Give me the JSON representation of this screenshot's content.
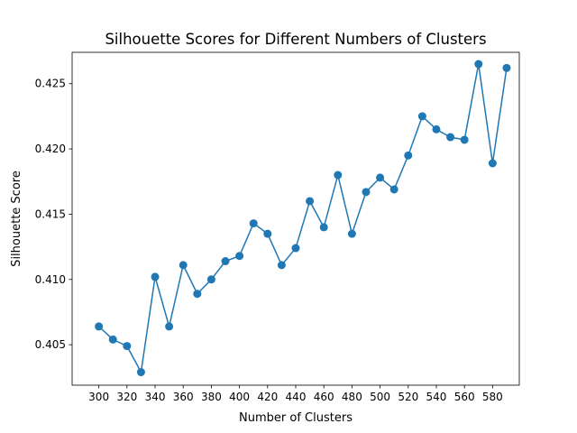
{
  "chart_data": {
    "type": "line",
    "title": "Silhouette Scores for Different Numbers of Clusters",
    "xlabel": "Number of Clusters",
    "ylabel": "Silhouette Score",
    "xlim": [
      281,
      599
    ],
    "ylim": [
      0.4019,
      0.4274
    ],
    "xticks": [
      300,
      320,
      340,
      360,
      380,
      400,
      420,
      440,
      460,
      480,
      500,
      520,
      540,
      560,
      580
    ],
    "yticks": [
      0.405,
      0.41,
      0.415,
      0.42,
      0.425
    ],
    "ytick_labels": [
      "0.405",
      "0.410",
      "0.415",
      "0.420",
      "0.425"
    ],
    "grid": false,
    "line_color": "#1f77b4",
    "marker": "circle",
    "series": [
      {
        "x": [
          300,
          310,
          320,
          330,
          340,
          350,
          360,
          370,
          380,
          390,
          400,
          410,
          420,
          430,
          440,
          450,
          460,
          470,
          480,
          490,
          500,
          510,
          520,
          530,
          540,
          550,
          560,
          570,
          580,
          590
        ],
        "y": [
          0.4064,
          0.4054,
          0.4049,
          0.4029,
          0.4102,
          0.4064,
          0.4111,
          0.4089,
          0.41,
          0.4114,
          0.4118,
          0.4143,
          0.4135,
          0.4111,
          0.4124,
          0.416,
          0.414,
          0.418,
          0.4135,
          0.4167,
          0.4178,
          0.4169,
          0.4195,
          0.4225,
          0.4215,
          0.4209,
          0.4207,
          0.4265,
          0.4189,
          0.4262
        ]
      }
    ]
  }
}
